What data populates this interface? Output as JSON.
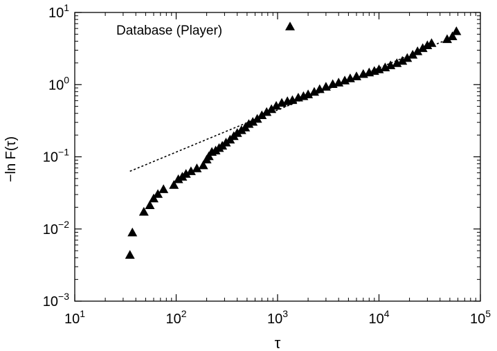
{
  "chart_data": {
    "type": "scatter",
    "x_scale": "log",
    "y_scale": "log",
    "xlim": [
      10,
      100000
    ],
    "ylim": [
      0.001,
      10
    ],
    "xlabel": "τ",
    "ylabel": "−ln F(τ)",
    "x_ticks": [
      {
        "value": 10,
        "base": "10",
        "exp": "1"
      },
      {
        "value": 100,
        "base": "10",
        "exp": "2"
      },
      {
        "value": 1000,
        "base": "10",
        "exp": "3"
      },
      {
        "value": 10000,
        "base": "10",
        "exp": "4"
      },
      {
        "value": 100000,
        "base": "10",
        "exp": "5"
      }
    ],
    "y_ticks": [
      {
        "value": 0.001,
        "base": "10",
        "exp": "−3"
      },
      {
        "value": 0.01,
        "base": "10",
        "exp": "−2"
      },
      {
        "value": 0.1,
        "base": "10",
        "exp": "−1"
      },
      {
        "value": 1,
        "base": "10",
        "exp": "0"
      },
      {
        "value": 10,
        "base": "10",
        "exp": "1"
      }
    ],
    "legend": {
      "label": "Database (Player)",
      "position": "top-left",
      "marker": "triangle"
    },
    "marker_color": "#000000",
    "series": [
      {
        "name": "Database (Player)",
        "marker": "triangle",
        "points": [
          [
            35,
            0.0043
          ],
          [
            37,
            0.0088
          ],
          [
            48,
            0.017
          ],
          [
            55,
            0.021
          ],
          [
            60,
            0.026
          ],
          [
            66,
            0.03
          ],
          [
            75,
            0.035
          ],
          [
            95,
            0.04
          ],
          [
            105,
            0.048
          ],
          [
            115,
            0.052
          ],
          [
            125,
            0.057
          ],
          [
            140,
            0.062
          ],
          [
            160,
            0.068
          ],
          [
            185,
            0.075
          ],
          [
            200,
            0.09
          ],
          [
            210,
            0.1
          ],
          [
            225,
            0.115
          ],
          [
            245,
            0.12
          ],
          [
            265,
            0.13
          ],
          [
            285,
            0.14
          ],
          [
            310,
            0.155
          ],
          [
            340,
            0.17
          ],
          [
            370,
            0.19
          ],
          [
            400,
            0.21
          ],
          [
            440,
            0.23
          ],
          [
            480,
            0.25
          ],
          [
            520,
            0.28
          ],
          [
            570,
            0.3
          ],
          [
            630,
            0.33
          ],
          [
            700,
            0.37
          ],
          [
            780,
            0.41
          ],
          [
            870,
            0.45
          ],
          [
            970,
            0.5
          ],
          [
            1100,
            0.55
          ],
          [
            1250,
            0.58
          ],
          [
            1400,
            0.6
          ],
          [
            1600,
            0.65
          ],
          [
            1800,
            0.68
          ],
          [
            2000,
            0.72
          ],
          [
            2300,
            0.78
          ],
          [
            2600,
            0.85
          ],
          [
            3000,
            0.92
          ],
          [
            3500,
            1.0
          ],
          [
            4000,
            1.05
          ],
          [
            4600,
            1.12
          ],
          [
            5200,
            1.2
          ],
          [
            6000,
            1.28
          ],
          [
            7000,
            1.38
          ],
          [
            8000,
            1.45
          ],
          [
            9000,
            1.52
          ],
          [
            10000,
            1.6
          ],
          [
            11500,
            1.7
          ],
          [
            13000,
            1.82
          ],
          [
            15000,
            1.95
          ],
          [
            17000,
            2.1
          ],
          [
            19000,
            2.3
          ],
          [
            21500,
            2.55
          ],
          [
            24000,
            2.85
          ],
          [
            27000,
            3.15
          ],
          [
            30000,
            3.45
          ],
          [
            33000,
            3.7
          ],
          [
            47000,
            4.2
          ],
          [
            53000,
            4.6
          ],
          [
            58000,
            5.4
          ]
        ]
      },
      {
        "name": "",
        "type": "line",
        "style": "dashed",
        "points": [
          [
            35,
            0.063
          ],
          [
            45000,
            4.1
          ]
        ]
      }
    ]
  }
}
